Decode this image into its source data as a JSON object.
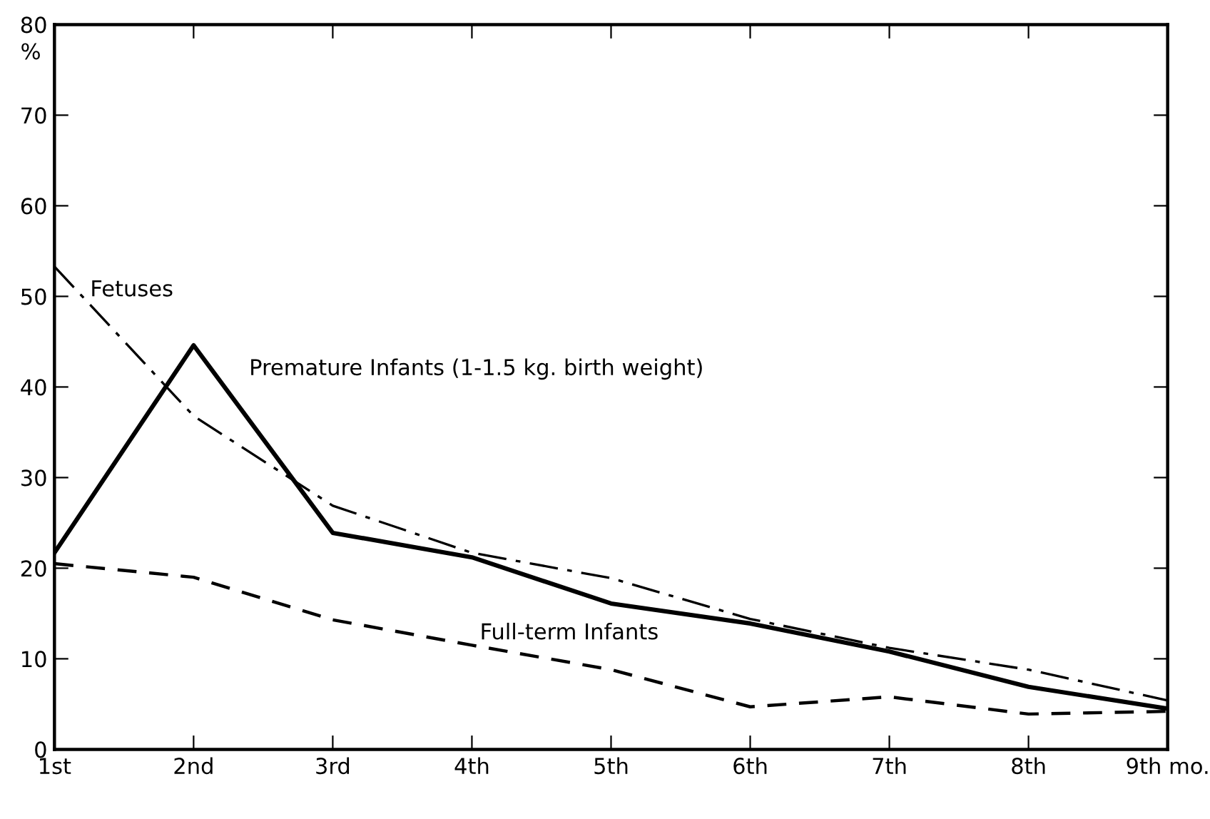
{
  "chart_data": {
    "type": "line",
    "ylabel": "%",
    "categories": [
      "1st",
      "2nd",
      "3rd",
      "4th",
      "5th",
      "6th",
      "7th",
      "8th",
      "9th mo."
    ],
    "ylim": [
      0,
      80
    ],
    "yticks": [
      0,
      10,
      20,
      30,
      40,
      50,
      60,
      70,
      80
    ],
    "grid": false,
    "legend": false,
    "marker": "none",
    "series": [
      {
        "name": "Fetuses",
        "color": "#000000",
        "line_style": "dashdot",
        "values": [
          53.3,
          36.8,
          26.9,
          21.7,
          18.9,
          14.4,
          11.2,
          8.8,
          5.4
        ]
      },
      {
        "name": "Premature Infants (1-1.5 kg. birth weight)",
        "color": "#000000",
        "line_style": "solid",
        "values": [
          21.7,
          44.6,
          23.9,
          21.2,
          16.1,
          13.9,
          10.8,
          6.9,
          4.5
        ]
      },
      {
        "name": "Full-term Infants",
        "color": "#000000",
        "line_style": "dashed",
        "values": [
          20.5,
          19.0,
          14.3,
          11.5,
          8.8,
          4.7,
          5.8,
          3.9,
          4.2
        ]
      }
    ]
  }
}
